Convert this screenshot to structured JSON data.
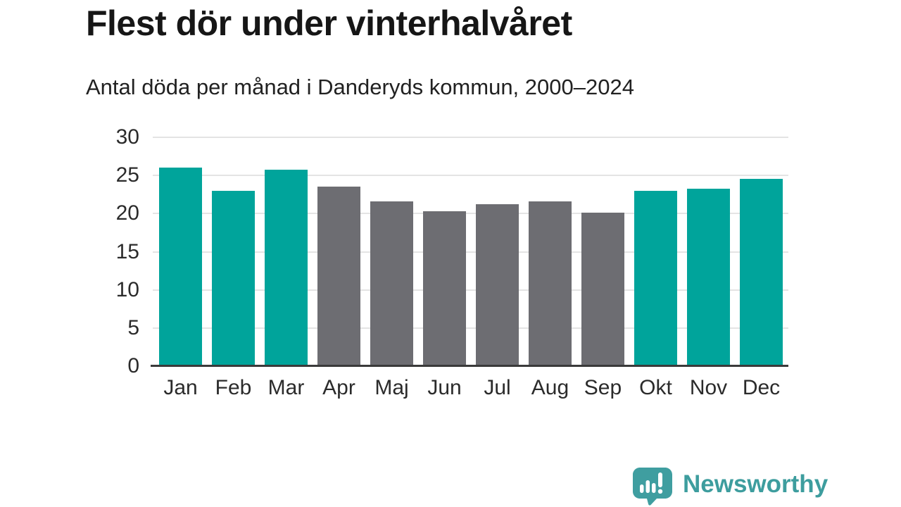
{
  "chart_data": {
    "type": "bar",
    "title": "Flest dör under vinterhalvåret",
    "subtitle": "Antal döda per månad i Danderyds kommun, 2000–2024",
    "categories": [
      "Jan",
      "Feb",
      "Mar",
      "Apr",
      "Maj",
      "Jun",
      "Jul",
      "Aug",
      "Sep",
      "Okt",
      "Nov",
      "Dec"
    ],
    "values": [
      26.0,
      23.0,
      25.8,
      23.5,
      21.6,
      20.3,
      21.2,
      21.6,
      20.1,
      23.0,
      23.3,
      24.6
    ],
    "highlighted": [
      true,
      true,
      true,
      false,
      false,
      false,
      false,
      false,
      false,
      true,
      true,
      true
    ],
    "xlabel": "",
    "ylabel": "",
    "ylim": [
      0,
      30
    ],
    "yticks": [
      0,
      5,
      10,
      15,
      20,
      25,
      30
    ],
    "grid": true,
    "legend": false
  },
  "colors": {
    "highlight_bar": "#00a49b",
    "muted_bar": "#6d6d72",
    "gridline": "#e4e4e4",
    "baseline": "#3a3a3a",
    "axis_text": "#2b2b2b",
    "title_text": "#161616",
    "brand_teal": "#3d9d9e"
  },
  "footer": {
    "brand": "Newsworthy"
  }
}
